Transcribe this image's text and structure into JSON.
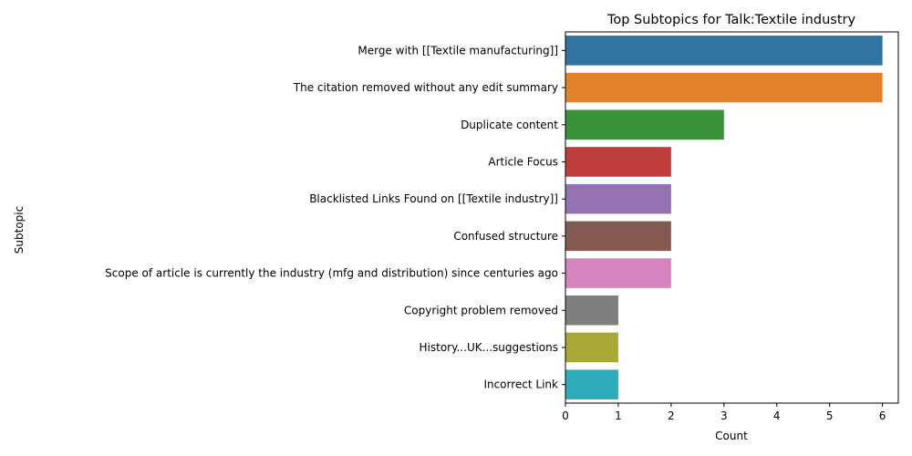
{
  "chart_data": {
    "type": "bar",
    "orientation": "horizontal",
    "title": "Top Subtopics for Talk:Textile industry",
    "xlabel": "Count",
    "ylabel": "Subtopic",
    "xlim": [
      0,
      6.3
    ],
    "xticks": [
      0,
      1,
      2,
      3,
      4,
      5,
      6
    ],
    "grid": false,
    "legend": "none",
    "categories": [
      "Merge with [[Textile manufacturing]]",
      "The citation removed without any edit summary",
      "Duplicate content",
      "Article Focus",
      "Blacklisted Links Found on [[Textile industry]]",
      "Confused structure",
      "Scope of article is currently the industry (mfg and distribution) since centuries ago",
      "Copyright problem removed",
      "History...UK...suggestions",
      "Incorrect Link"
    ],
    "values": [
      6,
      6,
      3,
      2,
      2,
      2,
      2,
      1,
      1,
      1
    ],
    "colors": [
      "#3274a1",
      "#e1812c",
      "#3a923a",
      "#c03d3e",
      "#9372b2",
      "#845b53",
      "#d684bd",
      "#7f7f7f",
      "#a9aa35",
      "#2eabb8"
    ]
  }
}
